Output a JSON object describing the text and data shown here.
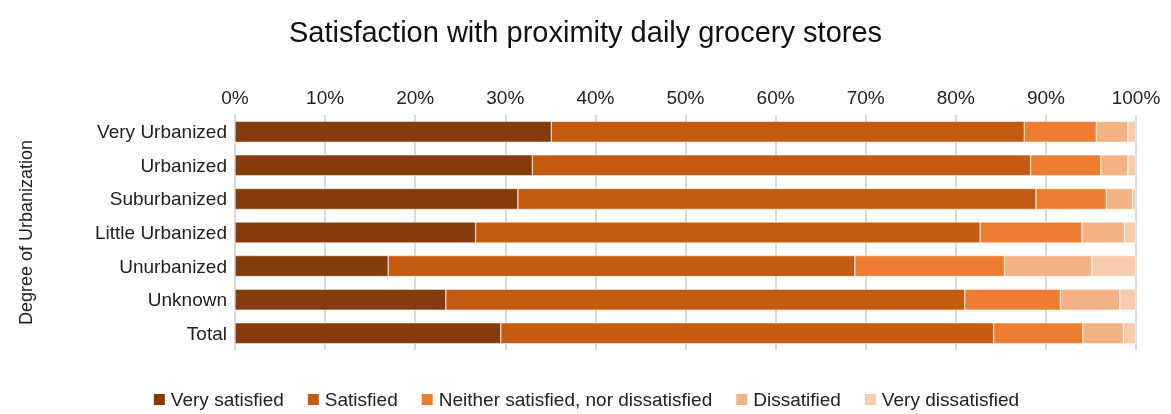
{
  "chart_data": {
    "type": "bar",
    "title": "Satisfaction with proximity daily grocery stores",
    "ylabel": "Degree of Urbanization",
    "orientation": "horizontal",
    "stacked": true,
    "categories": [
      "Very Urbanized",
      "Urbanized",
      "Suburbanized",
      "Little Urbanized",
      "Unurbanized",
      "Unknown",
      "Total"
    ],
    "series": [
      {
        "name": "Very satisfied",
        "color": "#843c0c",
        "values": [
          35.1,
          33.0,
          31.4,
          26.7,
          17.0,
          23.4,
          29.5
        ]
      },
      {
        "name": "Satisfied",
        "color": "#c55a11",
        "values": [
          52.5,
          55.3,
          57.5,
          56.0,
          51.8,
          57.6,
          54.7
        ]
      },
      {
        "name": "Neither satisfied, nor dissatisfied",
        "color": "#ed7d31",
        "values": [
          8.0,
          7.8,
          7.8,
          11.3,
          16.6,
          10.6,
          9.9
        ]
      },
      {
        "name": "Dissatified",
        "color": "#f4b183",
        "values": [
          3.5,
          3.0,
          2.9,
          4.7,
          9.7,
          6.6,
          4.5
        ]
      },
      {
        "name": "Very dissatisfied",
        "color": "#f8cbad",
        "values": [
          0.9,
          0.9,
          0.4,
          1.3,
          4.9,
          1.8,
          1.4
        ]
      }
    ],
    "xlim": [
      0,
      100
    ],
    "xticks": [
      {
        "value": 0,
        "label": "0%"
      },
      {
        "value": 10,
        "label": "10%"
      },
      {
        "value": 20,
        "label": "20%"
      },
      {
        "value": 30,
        "label": "30%"
      },
      {
        "value": 40,
        "label": "40%"
      },
      {
        "value": 50,
        "label": "50%"
      },
      {
        "value": 60,
        "label": "60%"
      },
      {
        "value": 70,
        "label": "70%"
      },
      {
        "value": 80,
        "label": "80%"
      },
      {
        "value": 90,
        "label": "90%"
      },
      {
        "value": 100,
        "label": "100%"
      }
    ],
    "grid": "x",
    "legend": "bottom"
  }
}
